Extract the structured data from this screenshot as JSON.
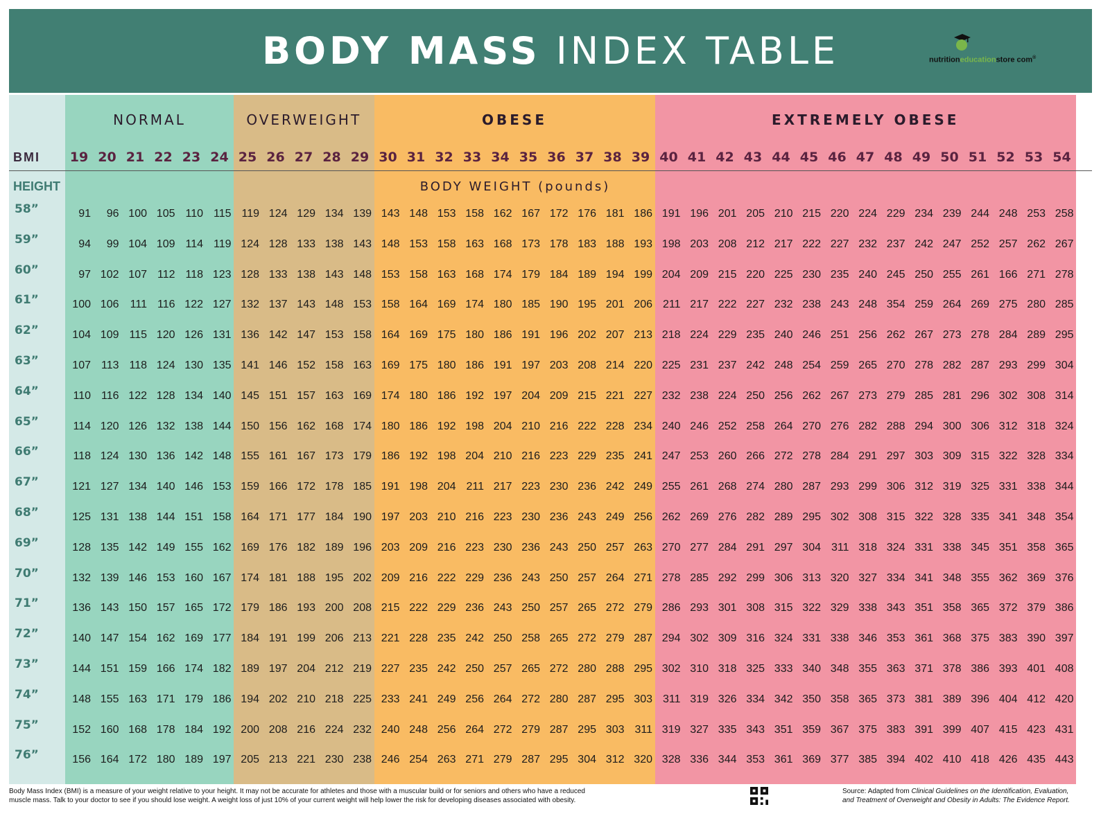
{
  "header": {
    "title_bold": "BODY MASS",
    "title_light": "INDEX TABLE",
    "brand_nutrition": "nutrition",
    "brand_education": "education",
    "brand_rest": "store com",
    "brand_reg": "®",
    "colors": {
      "banner": "#417f73",
      "logo_apple": "#7ab64a"
    }
  },
  "table": {
    "categories": [
      {
        "label": "NORMAL",
        "color": "#98d5bf",
        "bold": false
      },
      {
        "label": "OVERWEIGHT",
        "color": "#d9bb87",
        "bold": false
      },
      {
        "label": "OBESE",
        "color": "#f9bb63",
        "bold": true
      },
      {
        "label": "EXTREMELY OBESE",
        "color": "#f295a4",
        "bold": true
      }
    ],
    "bmi_label": "BMI",
    "bmi_values": [
      19,
      20,
      21,
      22,
      23,
      24,
      25,
      26,
      27,
      28,
      29,
      30,
      31,
      32,
      33,
      34,
      35,
      36,
      37,
      38,
      39,
      40,
      41,
      42,
      43,
      44,
      45,
      46,
      47,
      48,
      49,
      50,
      51,
      52,
      53,
      54
    ],
    "height_label": "HEIGHT",
    "weight_label": "BODY WEIGHT (pounds)",
    "rows": [
      {
        "height": "58”",
        "weights": [
          91,
          96,
          100,
          105,
          110,
          115,
          119,
          124,
          129,
          134,
          139,
          143,
          148,
          153,
          158,
          162,
          167,
          172,
          176,
          181,
          186,
          191,
          196,
          201,
          205,
          210,
          215,
          220,
          224,
          229,
          234,
          239,
          244,
          248,
          253,
          258
        ]
      },
      {
        "height": "59”",
        "weights": [
          94,
          99,
          104,
          109,
          114,
          119,
          124,
          128,
          133,
          138,
          143,
          148,
          153,
          158,
          163,
          168,
          173,
          178,
          183,
          188,
          193,
          198,
          203,
          208,
          212,
          217,
          222,
          227,
          232,
          237,
          242,
          247,
          252,
          257,
          262,
          267
        ]
      },
      {
        "height": "60”",
        "weights": [
          97,
          102,
          107,
          112,
          118,
          123,
          128,
          133,
          138,
          143,
          148,
          153,
          158,
          163,
          168,
          174,
          179,
          184,
          189,
          194,
          199,
          204,
          209,
          215,
          220,
          225,
          230,
          235,
          240,
          245,
          250,
          255,
          261,
          166,
          271,
          278
        ]
      },
      {
        "height": "61”",
        "weights": [
          100,
          106,
          111,
          116,
          122,
          127,
          132,
          137,
          143,
          148,
          153,
          158,
          164,
          169,
          174,
          180,
          185,
          190,
          195,
          201,
          206,
          211,
          217,
          222,
          227,
          232,
          238,
          243,
          248,
          354,
          259,
          264,
          269,
          275,
          280,
          285
        ]
      },
      {
        "height": "62”",
        "weights": [
          104,
          109,
          115,
          120,
          126,
          131,
          136,
          142,
          147,
          153,
          158,
          164,
          169,
          175,
          180,
          186,
          191,
          196,
          202,
          207,
          213,
          218,
          224,
          229,
          235,
          240,
          246,
          251,
          256,
          262,
          267,
          273,
          278,
          284,
          289,
          295
        ]
      },
      {
        "height": "63”",
        "weights": [
          107,
          113,
          118,
          124,
          130,
          135,
          141,
          146,
          152,
          158,
          163,
          169,
          175,
          180,
          186,
          191,
          197,
          203,
          208,
          214,
          220,
          225,
          231,
          237,
          242,
          248,
          254,
          259,
          265,
          270,
          278,
          282,
          287,
          293,
          299,
          304
        ]
      },
      {
        "height": "64”",
        "weights": [
          110,
          116,
          122,
          128,
          134,
          140,
          145,
          151,
          157,
          163,
          169,
          174,
          180,
          186,
          192,
          197,
          204,
          209,
          215,
          221,
          227,
          232,
          238,
          224,
          250,
          256,
          262,
          267,
          273,
          279,
          285,
          281,
          296,
          302,
          308,
          314
        ]
      },
      {
        "height": "65”",
        "weights": [
          114,
          120,
          126,
          132,
          138,
          144,
          150,
          156,
          162,
          168,
          174,
          180,
          186,
          192,
          198,
          204,
          210,
          216,
          222,
          228,
          234,
          240,
          246,
          252,
          258,
          264,
          270,
          276,
          282,
          288,
          294,
          300,
          306,
          312,
          318,
          324
        ]
      },
      {
        "height": "66”",
        "weights": [
          118,
          124,
          130,
          136,
          142,
          148,
          155,
          161,
          167,
          173,
          179,
          186,
          192,
          198,
          204,
          210,
          216,
          223,
          229,
          235,
          241,
          247,
          253,
          260,
          266,
          272,
          278,
          284,
          291,
          297,
          303,
          309,
          315,
          322,
          328,
          334
        ]
      },
      {
        "height": "67”",
        "weights": [
          121,
          127,
          134,
          140,
          146,
          153,
          159,
          166,
          172,
          178,
          185,
          191,
          198,
          204,
          211,
          217,
          223,
          230,
          236,
          242,
          249,
          255,
          261,
          268,
          274,
          280,
          287,
          293,
          299,
          306,
          312,
          319,
          325,
          331,
          338,
          344
        ]
      },
      {
        "height": "68”",
        "weights": [
          125,
          131,
          138,
          144,
          151,
          158,
          164,
          171,
          177,
          184,
          190,
          197,
          203,
          210,
          216,
          223,
          230,
          236,
          243,
          249,
          256,
          262,
          269,
          276,
          282,
          289,
          295,
          302,
          308,
          315,
          322,
          328,
          335,
          341,
          348,
          354
        ]
      },
      {
        "height": "69”",
        "weights": [
          128,
          135,
          142,
          149,
          155,
          162,
          169,
          176,
          182,
          189,
          196,
          203,
          209,
          216,
          223,
          230,
          236,
          243,
          250,
          257,
          263,
          270,
          277,
          284,
          291,
          297,
          304,
          311,
          318,
          324,
          331,
          338,
          345,
          351,
          358,
          365
        ]
      },
      {
        "height": "70”",
        "weights": [
          132,
          139,
          146,
          153,
          160,
          167,
          174,
          181,
          188,
          195,
          202,
          209,
          216,
          222,
          229,
          236,
          243,
          250,
          257,
          264,
          271,
          278,
          285,
          292,
          299,
          306,
          313,
          320,
          327,
          334,
          341,
          348,
          355,
          362,
          369,
          376
        ]
      },
      {
        "height": "71”",
        "weights": [
          136,
          143,
          150,
          157,
          165,
          172,
          179,
          186,
          193,
          200,
          208,
          215,
          222,
          229,
          236,
          243,
          250,
          257,
          265,
          272,
          279,
          286,
          293,
          301,
          308,
          315,
          322,
          329,
          338,
          343,
          351,
          358,
          365,
          372,
          379,
          386
        ]
      },
      {
        "height": "72”",
        "weights": [
          140,
          147,
          154,
          162,
          169,
          177,
          184,
          191,
          199,
          206,
          213,
          221,
          228,
          235,
          242,
          250,
          258,
          265,
          272,
          279,
          287,
          294,
          302,
          309,
          316,
          324,
          331,
          338,
          346,
          353,
          361,
          368,
          375,
          383,
          390,
          397
        ]
      },
      {
        "height": "73”",
        "weights": [
          144,
          151,
          159,
          166,
          174,
          182,
          189,
          197,
          204,
          212,
          219,
          227,
          235,
          242,
          250,
          257,
          265,
          272,
          280,
          288,
          295,
          302,
          310,
          318,
          325,
          333,
          340,
          348,
          355,
          363,
          371,
          378,
          386,
          393,
          401,
          408
        ]
      },
      {
        "height": "74”",
        "weights": [
          148,
          155,
          163,
          171,
          179,
          186,
          194,
          202,
          210,
          218,
          225,
          233,
          241,
          249,
          256,
          264,
          272,
          280,
          287,
          295,
          303,
          311,
          319,
          326,
          334,
          342,
          350,
          358,
          365,
          373,
          381,
          389,
          396,
          404,
          412,
          420
        ]
      },
      {
        "height": "75”",
        "weights": [
          152,
          160,
          168,
          178,
          184,
          192,
          200,
          208,
          216,
          224,
          232,
          240,
          248,
          256,
          264,
          272,
          279,
          287,
          295,
          303,
          311,
          319,
          327,
          335,
          343,
          351,
          359,
          367,
          375,
          383,
          391,
          399,
          407,
          415,
          423,
          431
        ]
      },
      {
        "height": "76”",
        "weights": [
          156,
          164,
          172,
          180,
          189,
          197,
          205,
          213,
          221,
          230,
          238,
          246,
          254,
          263,
          271,
          279,
          287,
          295,
          304,
          312,
          320,
          328,
          336,
          344,
          353,
          361,
          369,
          377,
          385,
          394,
          402,
          410,
          418,
          426,
          435,
          443
        ]
      }
    ]
  },
  "footer": {
    "note_line1": "Body Mass Index (BMI) is a measure of your weight relative to your height. It may not be accurate for athletes and those with a muscular build or for seniors and others who have a reduced",
    "note_line2": "muscle mass. Talk to your doctor to see if you should lose weight. A weight loss of just 10% of your current weight will help lower the risk for developing diseases associated with obesity.",
    "source_prefix": "Source:  Adapted from ",
    "source_italic1": "Clinical Guidelines on the Identification, Evaluation,",
    "source_italic2": "and Treatment of Overweight and Obesity in Adults: The Evidence Report."
  }
}
